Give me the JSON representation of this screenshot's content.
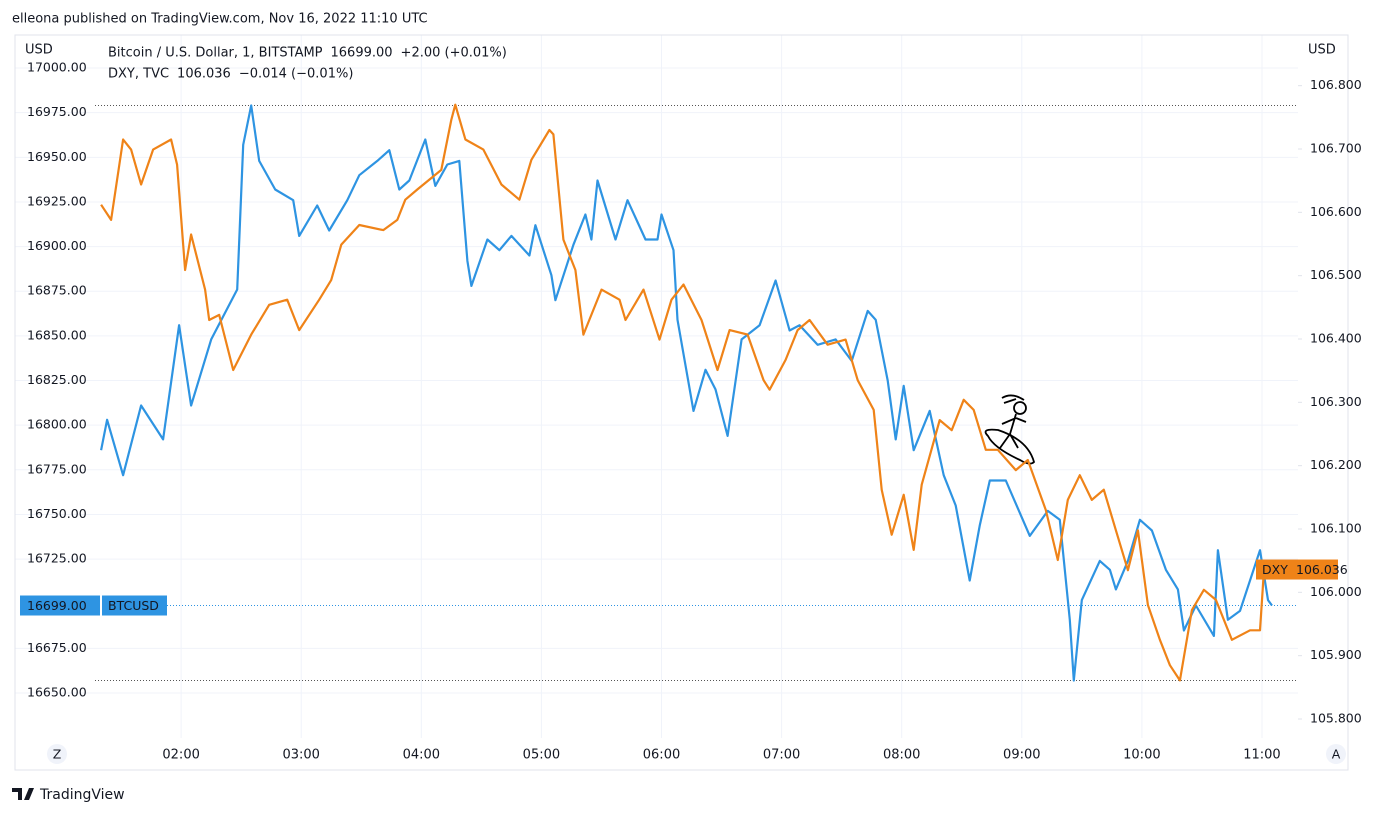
{
  "header": {
    "attribution": "elleona published on TradingView.com, Nov 16, 2022 11:10 UTC",
    "brand": "TradingView"
  },
  "chart_data": {
    "type": "line",
    "y_unit": "USD",
    "y2_unit": "USD",
    "grid": true,
    "xlim": [
      "00:37",
      "11:18"
    ],
    "xticks": [
      "02:00",
      "03:00",
      "04:00",
      "05:00",
      "06:00",
      "07:00",
      "08:00",
      "09:00",
      "10:00",
      "11:00"
    ],
    "ylim": [
      16624.8,
      17018.5
    ],
    "yticks": [
      {
        "value": 16650,
        "label": "16650.00"
      },
      {
        "value": 16675,
        "label": "16675.00"
      },
      {
        "value": 16725,
        "label": "16725.00"
      },
      {
        "value": 16750,
        "label": "16750.00"
      },
      {
        "value": 16775,
        "label": "16775.00"
      },
      {
        "value": 16800,
        "label": "16800.00"
      },
      {
        "value": 16825,
        "label": "16825.00"
      },
      {
        "value": 16850,
        "label": "16850.00"
      },
      {
        "value": 16875,
        "label": "16875.00"
      },
      {
        "value": 16900,
        "label": "16900.00"
      },
      {
        "value": 16925,
        "label": "16925.00"
      },
      {
        "value": 16950,
        "label": "16950.00"
      },
      {
        "value": 16975,
        "label": "16975.00"
      },
      {
        "value": 17000,
        "label": "17000.00"
      }
    ],
    "y2lim": [
      105.77,
      106.88
    ],
    "y2ticks": [
      {
        "value": 105.8,
        "label": "105.800"
      },
      {
        "value": 105.9,
        "label": "105.900"
      },
      {
        "value": 106,
        "label": "106.000"
      },
      {
        "value": 106.1,
        "label": "106.100"
      },
      {
        "value": 106.2,
        "label": "106.200"
      },
      {
        "value": 106.3,
        "label": "106.300"
      },
      {
        "value": 106.4,
        "label": "106.400"
      },
      {
        "value": 106.5,
        "label": "106.500"
      },
      {
        "value": 106.6,
        "label": "106.600"
      },
      {
        "value": 106.7,
        "label": "106.700"
      },
      {
        "value": 106.8,
        "label": "106.800"
      }
    ],
    "scale_buttons": [
      "Z",
      "A"
    ],
    "series": [
      {
        "name": "Bitcoin / U.S. Dollar, 1, BITSTAMP",
        "symbol": "BTCUSD",
        "color": "#2e94e2",
        "axis": "y",
        "last": {
          "value": 16699,
          "label": "16699.00"
        },
        "change": "+2.00 (+0.01%)",
        "x": [
          "01:20",
          "01:23",
          "01:31",
          "01:40",
          "01:51",
          "01:59",
          "02:05",
          "02:15",
          "02:28",
          "02:31",
          "02:35",
          "02:39",
          "02:47",
          "02:56",
          "02:59",
          "03:08",
          "03:14",
          "03:23",
          "03:29",
          "03:38",
          "03:44",
          "03:49",
          "03:54",
          "04:02",
          "04:07",
          "04:13",
          "04:19",
          "04:23",
          "04:25",
          "04:33",
          "04:39",
          "04:45",
          "04:54",
          "04:57",
          "05:05",
          "05:07",
          "05:16",
          "05:22",
          "05:25",
          "05:28",
          "05:37",
          "05:43",
          "05:52",
          "05:58",
          "06:00",
          "06:06",
          "06:08",
          "06:16",
          "06:22",
          "06:27",
          "06:33",
          "06:40",
          "06:49",
          "06:57",
          "07:04",
          "07:09",
          "07:18",
          "07:27",
          "07:35",
          "07:43",
          "07:47",
          "07:53",
          "07:57",
          "08:01",
          "08:06",
          "08:14",
          "08:21",
          "08:27",
          "08:34",
          "08:39",
          "08:44",
          "08:52",
          "09:04",
          "09:13",
          "09:19",
          "09:24",
          "09:26",
          "09:30",
          "09:39",
          "09:44",
          "09:47",
          "09:53",
          "09:59",
          "10:05",
          "10:12",
          "10:18",
          "10:21",
          "10:27",
          "10:36",
          "10:38",
          "10:43",
          "10:49",
          "10:59",
          "11:03",
          "11:05"
        ],
        "values": [
          16786,
          16803,
          16772,
          16811,
          16792,
          16856,
          16811,
          16848,
          16876,
          16957,
          16979,
          16948,
          16932,
          16926,
          16906,
          16923,
          16909,
          16926,
          16940,
          16948,
          16954,
          16932,
          16937,
          16960,
          16934,
          16946,
          16948,
          16892,
          16878,
          16904,
          16898,
          16906,
          16895,
          16912,
          16884,
          16870,
          16901,
          16918,
          16904,
          16937,
          16904,
          16926,
          16904,
          16904,
          16918,
          16898,
          16859,
          16808,
          16831,
          16820,
          16794,
          16848,
          16856,
          16881,
          16853,
          16856,
          16845,
          16848,
          16836,
          16864,
          16859,
          16825,
          16792,
          16822,
          16786,
          16808,
          16772,
          16755,
          16713,
          16744,
          16769,
          16769,
          16738,
          16752,
          16747,
          16691,
          16657,
          16702,
          16724,
          16719,
          16708,
          16724,
          16747,
          16741,
          16719,
          16708,
          16685,
          16699,
          16682,
          16730,
          16691,
          16696,
          16730,
          16702,
          16699
        ]
      },
      {
        "name": "DXY, TVC",
        "symbol": "DXY",
        "color": "#ef8318",
        "axis": "y2",
        "last": {
          "value": 106.036,
          "label": "106.036"
        },
        "change": "−0.014 (−0.01%)",
        "x": [
          "01:20",
          "01:25",
          "01:31",
          "01:35",
          "01:40",
          "01:46",
          "01:55",
          "01:58",
          "02:02",
          "02:05",
          "02:12",
          "02:14",
          "02:19",
          "02:26",
          "02:35",
          "02:44",
          "02:53",
          "02:59",
          "03:09",
          "03:15",
          "03:20",
          "03:29",
          "03:41",
          "03:48",
          "03:52",
          "03:58",
          "04:10",
          "04:15",
          "04:17",
          "04:22",
          "04:31",
          "04:40",
          "04:49",
          "04:55",
          "05:04",
          "05:06",
          "05:11",
          "05:17",
          "05:21",
          "05:30",
          "05:39",
          "05:42",
          "05:51",
          "05:59",
          "06:05",
          "06:11",
          "06:20",
          "06:28",
          "06:34",
          "06:43",
          "06:51",
          "06:54",
          "07:02",
          "07:08",
          "07:14",
          "07:23",
          "07:32",
          "07:38",
          "07:46",
          "07:50",
          "07:55",
          "08:01",
          "08:06",
          "08:10",
          "08:19",
          "08:25",
          "08:31",
          "08:36",
          "08:42",
          "08:48",
          "08:57",
          "09:03",
          "09:12",
          "09:18",
          "09:23",
          "09:29",
          "09:35",
          "09:41",
          "09:47",
          "09:53",
          "09:58",
          "10:03",
          "10:09",
          "10:14",
          "10:19",
          "10:25",
          "10:31",
          "10:37",
          "10:45",
          "10:54",
          "10:59",
          "11:01"
        ],
        "values": [
          106.612,
          106.588,
          106.715,
          106.699,
          106.644,
          106.699,
          106.715,
          106.675,
          106.509,
          106.565,
          106.478,
          106.43,
          106.438,
          106.351,
          106.407,
          106.454,
          106.462,
          106.414,
          106.462,
          106.493,
          106.549,
          106.58,
          106.572,
          106.588,
          106.62,
          106.636,
          106.667,
          106.746,
          106.77,
          106.715,
          106.699,
          106.644,
          106.62,
          106.683,
          106.73,
          106.723,
          106.557,
          106.509,
          106.407,
          106.478,
          106.462,
          106.43,
          106.478,
          106.399,
          106.462,
          106.486,
          106.43,
          106.351,
          106.414,
          106.407,
          106.335,
          106.32,
          106.367,
          106.414,
          106.43,
          106.391,
          106.399,
          106.335,
          106.288,
          106.162,
          106.091,
          106.154,
          106.067,
          106.17,
          106.272,
          106.256,
          106.304,
          106.288,
          106.225,
          106.225,
          106.193,
          106.209,
          106.13,
          106.051,
          106.146,
          106.185,
          106.146,
          106.162,
          106.098,
          106.035,
          106.098,
          105.98,
          105.925,
          105.885,
          105.861,
          105.972,
          106.004,
          105.988,
          105.925,
          105.94,
          105.94,
          106.036
        ]
      }
    ]
  }
}
